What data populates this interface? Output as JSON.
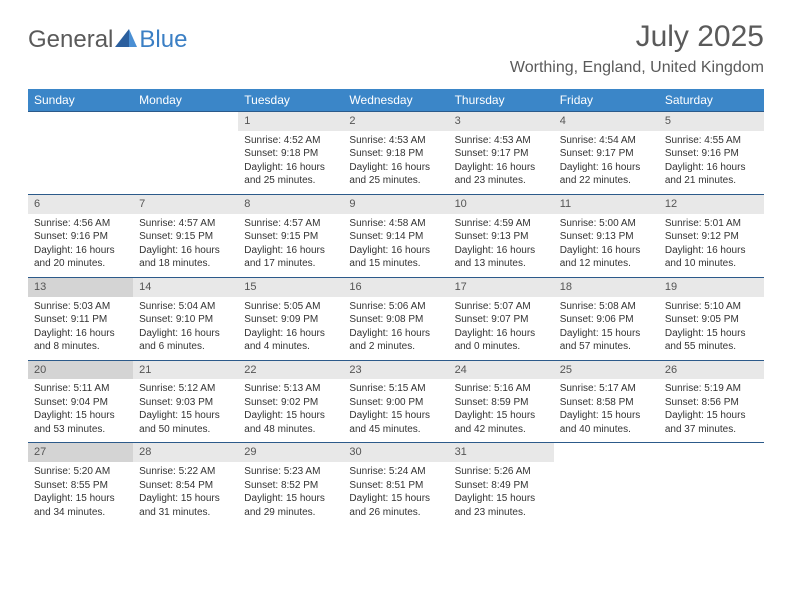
{
  "logo": {
    "part1": "General",
    "part2": "Blue"
  },
  "title": "July 2025",
  "location": "Worthing, England, United Kingdom",
  "colors": {
    "header_bg": "#3b86c8",
    "row_border": "#2c5a8a",
    "daynum_bg": "#e8e8e8",
    "daynum_shaded_bg": "#d4d4d4",
    "text_gray": "#5a5a5a",
    "logo_blue": "#3b7fc4"
  },
  "weekdays": [
    "Sunday",
    "Monday",
    "Tuesday",
    "Wednesday",
    "Thursday",
    "Friday",
    "Saturday"
  ],
  "shaded_days": [
    13,
    20,
    27
  ],
  "weeks": [
    [
      null,
      null,
      {
        "n": 1,
        "sunrise": "4:52 AM",
        "sunset": "9:18 PM",
        "daylight": "16 hours and 25 minutes."
      },
      {
        "n": 2,
        "sunrise": "4:53 AM",
        "sunset": "9:18 PM",
        "daylight": "16 hours and 25 minutes."
      },
      {
        "n": 3,
        "sunrise": "4:53 AM",
        "sunset": "9:17 PM",
        "daylight": "16 hours and 23 minutes."
      },
      {
        "n": 4,
        "sunrise": "4:54 AM",
        "sunset": "9:17 PM",
        "daylight": "16 hours and 22 minutes."
      },
      {
        "n": 5,
        "sunrise": "4:55 AM",
        "sunset": "9:16 PM",
        "daylight": "16 hours and 21 minutes."
      }
    ],
    [
      {
        "n": 6,
        "sunrise": "4:56 AM",
        "sunset": "9:16 PM",
        "daylight": "16 hours and 20 minutes."
      },
      {
        "n": 7,
        "sunrise": "4:57 AM",
        "sunset": "9:15 PM",
        "daylight": "16 hours and 18 minutes."
      },
      {
        "n": 8,
        "sunrise": "4:57 AM",
        "sunset": "9:15 PM",
        "daylight": "16 hours and 17 minutes."
      },
      {
        "n": 9,
        "sunrise": "4:58 AM",
        "sunset": "9:14 PM",
        "daylight": "16 hours and 15 minutes."
      },
      {
        "n": 10,
        "sunrise": "4:59 AM",
        "sunset": "9:13 PM",
        "daylight": "16 hours and 13 minutes."
      },
      {
        "n": 11,
        "sunrise": "5:00 AM",
        "sunset": "9:13 PM",
        "daylight": "16 hours and 12 minutes."
      },
      {
        "n": 12,
        "sunrise": "5:01 AM",
        "sunset": "9:12 PM",
        "daylight": "16 hours and 10 minutes."
      }
    ],
    [
      {
        "n": 13,
        "sunrise": "5:03 AM",
        "sunset": "9:11 PM",
        "daylight": "16 hours and 8 minutes."
      },
      {
        "n": 14,
        "sunrise": "5:04 AM",
        "sunset": "9:10 PM",
        "daylight": "16 hours and 6 minutes."
      },
      {
        "n": 15,
        "sunrise": "5:05 AM",
        "sunset": "9:09 PM",
        "daylight": "16 hours and 4 minutes."
      },
      {
        "n": 16,
        "sunrise": "5:06 AM",
        "sunset": "9:08 PM",
        "daylight": "16 hours and 2 minutes."
      },
      {
        "n": 17,
        "sunrise": "5:07 AM",
        "sunset": "9:07 PM",
        "daylight": "16 hours and 0 minutes."
      },
      {
        "n": 18,
        "sunrise": "5:08 AM",
        "sunset": "9:06 PM",
        "daylight": "15 hours and 57 minutes."
      },
      {
        "n": 19,
        "sunrise": "5:10 AM",
        "sunset": "9:05 PM",
        "daylight": "15 hours and 55 minutes."
      }
    ],
    [
      {
        "n": 20,
        "sunrise": "5:11 AM",
        "sunset": "9:04 PM",
        "daylight": "15 hours and 53 minutes."
      },
      {
        "n": 21,
        "sunrise": "5:12 AM",
        "sunset": "9:03 PM",
        "daylight": "15 hours and 50 minutes."
      },
      {
        "n": 22,
        "sunrise": "5:13 AM",
        "sunset": "9:02 PM",
        "daylight": "15 hours and 48 minutes."
      },
      {
        "n": 23,
        "sunrise": "5:15 AM",
        "sunset": "9:00 PM",
        "daylight": "15 hours and 45 minutes."
      },
      {
        "n": 24,
        "sunrise": "5:16 AM",
        "sunset": "8:59 PM",
        "daylight": "15 hours and 42 minutes."
      },
      {
        "n": 25,
        "sunrise": "5:17 AM",
        "sunset": "8:58 PM",
        "daylight": "15 hours and 40 minutes."
      },
      {
        "n": 26,
        "sunrise": "5:19 AM",
        "sunset": "8:56 PM",
        "daylight": "15 hours and 37 minutes."
      }
    ],
    [
      {
        "n": 27,
        "sunrise": "5:20 AM",
        "sunset": "8:55 PM",
        "daylight": "15 hours and 34 minutes."
      },
      {
        "n": 28,
        "sunrise": "5:22 AM",
        "sunset": "8:54 PM",
        "daylight": "15 hours and 31 minutes."
      },
      {
        "n": 29,
        "sunrise": "5:23 AM",
        "sunset": "8:52 PM",
        "daylight": "15 hours and 29 minutes."
      },
      {
        "n": 30,
        "sunrise": "5:24 AM",
        "sunset": "8:51 PM",
        "daylight": "15 hours and 26 minutes."
      },
      {
        "n": 31,
        "sunrise": "5:26 AM",
        "sunset": "8:49 PM",
        "daylight": "15 hours and 23 minutes."
      },
      null,
      null
    ]
  ],
  "labels": {
    "sunrise": "Sunrise:",
    "sunset": "Sunset:",
    "daylight": "Daylight:"
  }
}
